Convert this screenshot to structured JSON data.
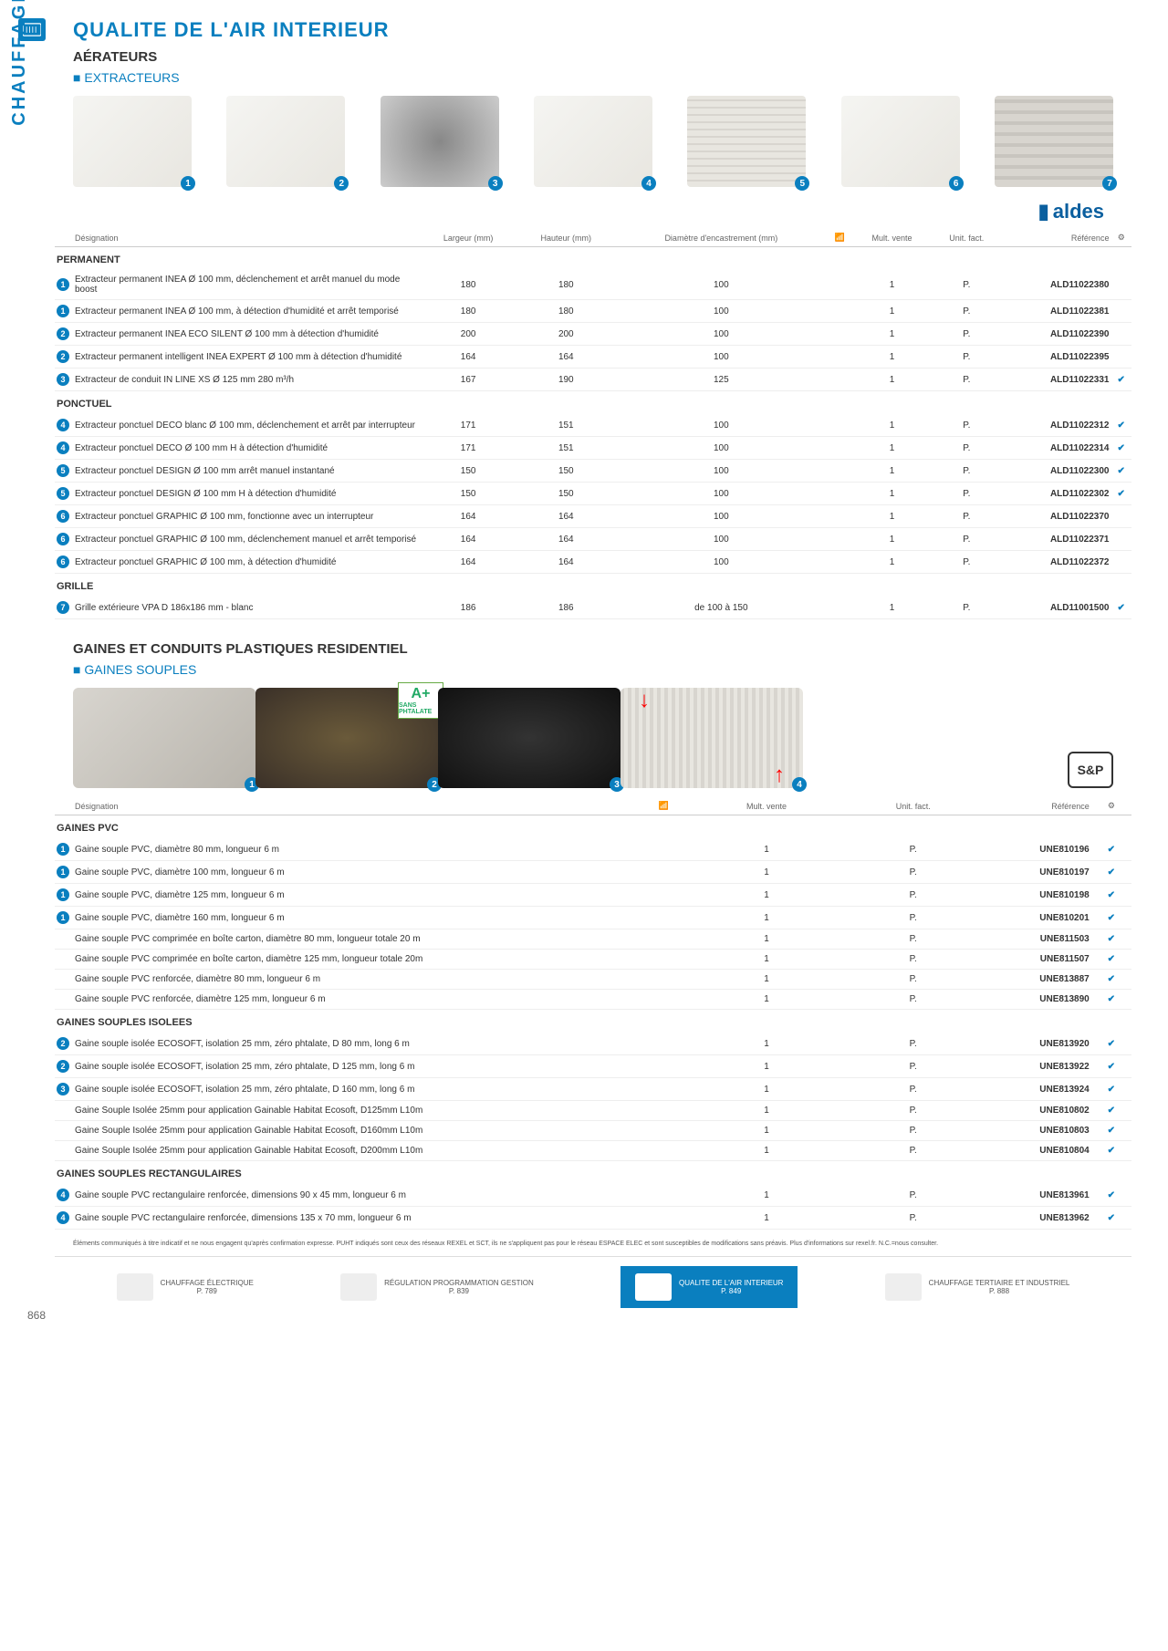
{
  "title": "QUALITE DE L'AIR INTERIEUR",
  "sub1": "AÉRATEURS",
  "sub2": "EXTRACTEURS",
  "brand1": "aldes",
  "sideLabel": "CHAUFFAGE ÉLECTRIQUE, ECS, PAC AIR-AIR ET QUALITE DE L'AIR INTERIEUR",
  "cols": {
    "des": "Désignation",
    "larg": "Largeur (mm)",
    "haut": "Hauteur (mm)",
    "diam": "Diamètre d'encastrement (mm)",
    "mult": "Mult. vente",
    "unit": "Unit. fact.",
    "ref": "Référence"
  },
  "sections1": [
    {
      "name": "PERMANENT",
      "rows": [
        {
          "n": "1",
          "d": "Extracteur permanent INEA Ø 100 mm, déclenchement et arrêt manuel du mode boost",
          "l": "180",
          "h": "180",
          "di": "100",
          "m": "1",
          "u": "P.",
          "r": "ALD11022380",
          "ck": ""
        },
        {
          "n": "1",
          "d": "Extracteur permanent INEA Ø 100 mm, à détection d'humidité et arrêt temporisé",
          "l": "180",
          "h": "180",
          "di": "100",
          "m": "1",
          "u": "P.",
          "r": "ALD11022381",
          "ck": ""
        },
        {
          "n": "2",
          "d": "Extracteur permanent INEA ECO SILENT Ø 100 mm à détection d'humidité",
          "l": "200",
          "h": "200",
          "di": "100",
          "m": "1",
          "u": "P.",
          "r": "ALD11022390",
          "ck": ""
        },
        {
          "n": "2",
          "d": "Extracteur permanent intelligent INEA EXPERT Ø 100 mm à détection d'humidité",
          "l": "164",
          "h": "164",
          "di": "100",
          "m": "1",
          "u": "P.",
          "r": "ALD11022395",
          "ck": ""
        },
        {
          "n": "3",
          "d": "Extracteur de conduit IN LINE XS Ø 125 mm 280 m³/h",
          "l": "167",
          "h": "190",
          "di": "125",
          "m": "1",
          "u": "P.",
          "r": "ALD11022331",
          "ck": "✔"
        }
      ]
    },
    {
      "name": "PONCTUEL",
      "rows": [
        {
          "n": "4",
          "d": "Extracteur ponctuel DECO blanc Ø 100 mm, déclenchement et arrêt par interrupteur",
          "l": "171",
          "h": "151",
          "di": "100",
          "m": "1",
          "u": "P.",
          "r": "ALD11022312",
          "ck": "✔"
        },
        {
          "n": "4",
          "d": "Extracteur ponctuel DECO Ø 100 mm H à détection d'humidité",
          "l": "171",
          "h": "151",
          "di": "100",
          "m": "1",
          "u": "P.",
          "r": "ALD11022314",
          "ck": "✔"
        },
        {
          "n": "5",
          "d": "Extracteur ponctuel DESIGN Ø 100 mm arrêt manuel instantané",
          "l": "150",
          "h": "150",
          "di": "100",
          "m": "1",
          "u": "P.",
          "r": "ALD11022300",
          "ck": "✔"
        },
        {
          "n": "5",
          "d": "Extracteur ponctuel DESIGN Ø 100 mm H à détection d'humidité",
          "l": "150",
          "h": "150",
          "di": "100",
          "m": "1",
          "u": "P.",
          "r": "ALD11022302",
          "ck": "✔"
        },
        {
          "n": "6",
          "d": "Extracteur ponctuel GRAPHIC Ø 100 mm, fonctionne avec un interrupteur",
          "l": "164",
          "h": "164",
          "di": "100",
          "m": "1",
          "u": "P.",
          "r": "ALD11022370",
          "ck": ""
        },
        {
          "n": "6",
          "d": "Extracteur ponctuel GRAPHIC Ø 100 mm, déclenchement manuel et arrêt temporisé",
          "l": "164",
          "h": "164",
          "di": "100",
          "m": "1",
          "u": "P.",
          "r": "ALD11022371",
          "ck": ""
        },
        {
          "n": "6",
          "d": "Extracteur ponctuel GRAPHIC Ø 100 mm, à détection d'humidité",
          "l": "164",
          "h": "164",
          "di": "100",
          "m": "1",
          "u": "P.",
          "r": "ALD11022372",
          "ck": ""
        }
      ]
    },
    {
      "name": "GRILLE",
      "rows": [
        {
          "n": "7",
          "d": "Grille extérieure VPA D 186x186 mm - blanc",
          "l": "186",
          "h": "186",
          "di": "de 100 à 150",
          "m": "1",
          "u": "P.",
          "r": "ALD11001500",
          "ck": "✔"
        }
      ]
    }
  ],
  "sub3": "GAINES ET CONDUITS PLASTIQUES RESIDENTIEL",
  "sub4": "GAINES SOUPLES",
  "brand2": "S&P",
  "sections2": [
    {
      "name": "GAINES PVC",
      "rows": [
        {
          "n": "1",
          "d": "Gaine souple PVC, diamètre 80 mm, longueur 6 m",
          "m": "1",
          "u": "P.",
          "r": "UNE810196",
          "ck": "✔"
        },
        {
          "n": "1",
          "d": "Gaine souple PVC, diamètre 100 mm, longueur 6 m",
          "m": "1",
          "u": "P.",
          "r": "UNE810197",
          "ck": "✔"
        },
        {
          "n": "1",
          "d": "Gaine souple PVC, diamètre 125 mm, longueur 6 m",
          "m": "1",
          "u": "P.",
          "r": "UNE810198",
          "ck": "✔"
        },
        {
          "n": "1",
          "d": "Gaine souple PVC, diamètre 160 mm, longueur 6 m",
          "m": "1",
          "u": "P.",
          "r": "UNE810201",
          "ck": "✔"
        },
        {
          "n": "",
          "d": "Gaine souple PVC comprimée en boîte carton, diamètre 80 mm, longueur totale 20 m",
          "m": "1",
          "u": "P.",
          "r": "UNE811503",
          "ck": "✔"
        },
        {
          "n": "",
          "d": "Gaine souple PVC comprimée en boîte carton, diamètre 125 mm, longueur totale 20m",
          "m": "1",
          "u": "P.",
          "r": "UNE811507",
          "ck": "✔"
        },
        {
          "n": "",
          "d": "Gaine souple PVC renforcée, diamètre 80 mm, longueur 6 m",
          "m": "1",
          "u": "P.",
          "r": "UNE813887",
          "ck": "✔"
        },
        {
          "n": "",
          "d": "Gaine souple PVC renforcée, diamètre 125 mm, longueur 6 m",
          "m": "1",
          "u": "P.",
          "r": "UNE813890",
          "ck": "✔"
        }
      ]
    },
    {
      "name": "GAINES SOUPLES ISOLEES",
      "rows": [
        {
          "n": "2",
          "d": "Gaine souple isolée ECOSOFT, isolation 25 mm, zéro phtalate, D 80 mm, long 6 m",
          "m": "1",
          "u": "P.",
          "r": "UNE813920",
          "ck": "✔"
        },
        {
          "n": "2",
          "d": "Gaine souple isolée ECOSOFT, isolation 25 mm, zéro phtalate, D 125 mm, long 6 m",
          "m": "1",
          "u": "P.",
          "r": "UNE813922",
          "ck": "✔"
        },
        {
          "n": "3",
          "d": "Gaine souple isolée ECOSOFT, isolation 25 mm, zéro phtalate, D 160 mm, long 6 m",
          "m": "1",
          "u": "P.",
          "r": "UNE813924",
          "ck": "✔"
        },
        {
          "n": "",
          "d": "Gaine Souple Isolée 25mm pour application Gainable Habitat Ecosoft, D125mm L10m",
          "m": "1",
          "u": "P.",
          "r": "UNE810802",
          "ck": "✔"
        },
        {
          "n": "",
          "d": "Gaine Souple Isolée 25mm pour application Gainable Habitat Ecosoft, D160mm L10m",
          "m": "1",
          "u": "P.",
          "r": "UNE810803",
          "ck": "✔"
        },
        {
          "n": "",
          "d": "Gaine Souple Isolée 25mm pour application Gainable Habitat Ecosoft, D200mm L10m",
          "m": "1",
          "u": "P.",
          "r": "UNE810804",
          "ck": "✔"
        }
      ]
    },
    {
      "name": "GAINES SOUPLES RECTANGULAIRES",
      "rows": [
        {
          "n": "4",
          "d": "Gaine souple PVC rectangulaire renforcée, dimensions 90 x 45 mm, longueur 6 m",
          "m": "1",
          "u": "P.",
          "r": "UNE813961",
          "ck": "✔"
        },
        {
          "n": "4",
          "d": "Gaine souple PVC rectangulaire renforcée, dimensions 135 x 70 mm, longueur 6 m",
          "m": "1",
          "u": "P.",
          "r": "UNE813962",
          "ck": "✔"
        }
      ]
    }
  ],
  "disclaimer": "Éléments communiqués à titre indicatif et ne nous engagent qu'après confirmation expresse. PUHT indiqués sont ceux des réseaux REXEL et SCT, ils ne s'appliquent pas pour le réseau ESPACE ELEC et sont susceptibles de modifications sans préavis. Plus d'informations sur rexel.fr. N.C.=nous consulter.",
  "footer": [
    {
      "t": "CHAUFFAGE ÉLECTRIQUE",
      "p": "P. 789"
    },
    {
      "t": "RÉGULATION PROGRAMMATION GESTION",
      "p": "P. 839"
    },
    {
      "t": "QUALITE DE L'AIR INTERIEUR",
      "p": "P. 849"
    },
    {
      "t": "CHAUFFAGE TERTIAIRE ET INDUSTRIEL",
      "p": "P. 888"
    }
  ],
  "pageNum": "868"
}
